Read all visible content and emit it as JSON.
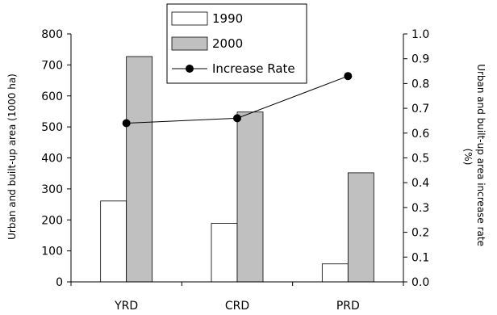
{
  "chart_data": {
    "type": "bar",
    "categories": [
      "YRD",
      "CRD",
      "PRD"
    ],
    "series": [
      {
        "name": "1990",
        "kind": "bar",
        "axis": "left",
        "color": "#ffffff",
        "values": [
          261,
          189,
          58
        ]
      },
      {
        "name": "2000",
        "kind": "bar",
        "axis": "left",
        "color": "#c0c0c0",
        "values": [
          727,
          548,
          352
        ]
      },
      {
        "name": "Increase Rate",
        "kind": "line",
        "axis": "right",
        "color": "#000000",
        "values": [
          0.64,
          0.66,
          0.83
        ]
      }
    ],
    "ylabel": "Urban and built-up area (1000 ha)",
    "y2label": "Urban and built-up area increase rate (%)",
    "y2label_lines": [
      "Urban and built-up area increase rate",
      "(%)"
    ],
    "ylim": [
      0,
      800
    ],
    "y2lim": [
      0,
      1.0
    ],
    "yticks": [
      "0",
      "100",
      "200",
      "300",
      "400",
      "500",
      "600",
      "700",
      "800"
    ],
    "y2ticks": [
      "0.0",
      "0.1",
      "0.2",
      "0.3",
      "0.4",
      "0.5",
      "0.6",
      "0.7",
      "0.8",
      "0.9",
      "1.0"
    ],
    "legend_position": "top-center",
    "grid": false
  }
}
